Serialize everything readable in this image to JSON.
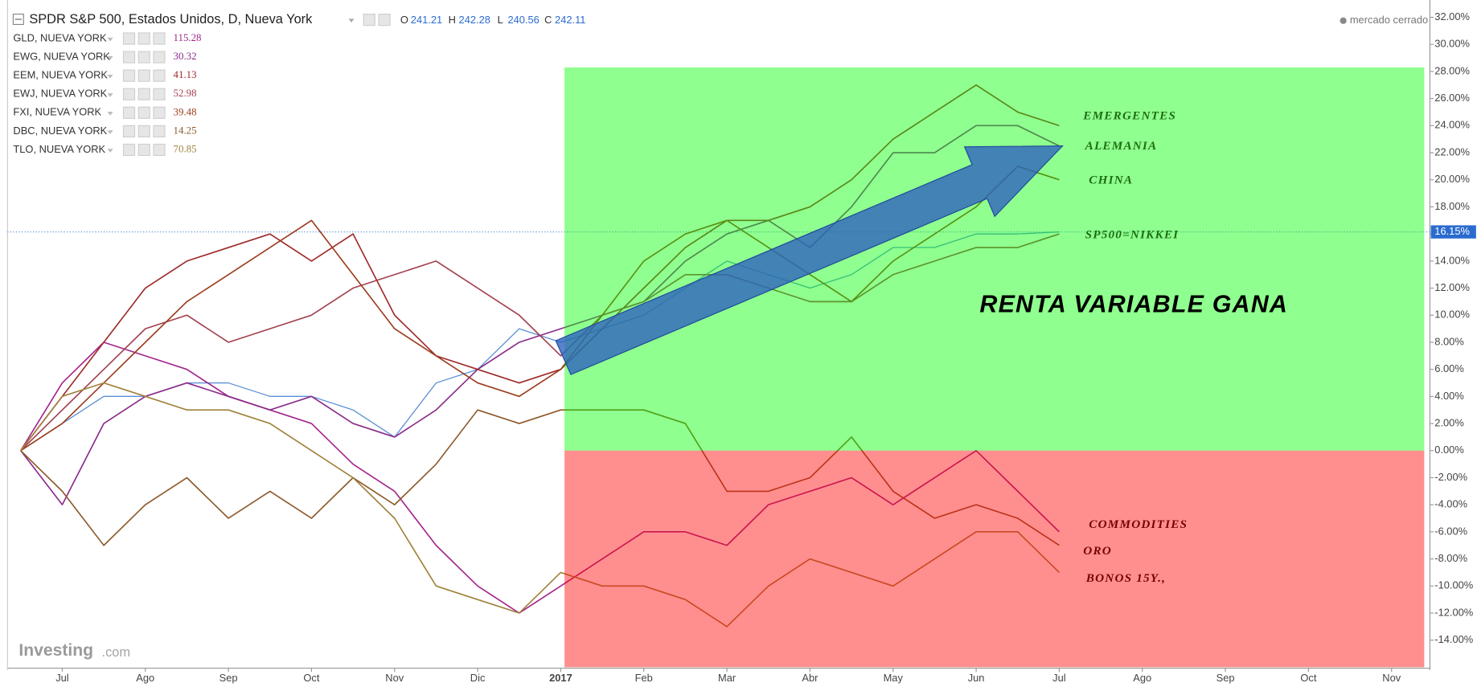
{
  "chart_data": {
    "type": "line",
    "categories": [
      null,
      "Jul",
      null,
      "Ago",
      null,
      "Sep",
      null,
      "Oct",
      null,
      "Nov",
      null,
      "Dic",
      null,
      "2017",
      null,
      "Feb",
      null,
      "Mar",
      null,
      "Abr",
      null,
      "May",
      null,
      "Jun",
      null,
      "Jul",
      null,
      "Ago",
      null,
      "Sep",
      null,
      "Oct",
      null,
      "Nov",
      null
    ],
    "ylim": [
      -16,
      33
    ],
    "yticks": [
      {
        "value": -14,
        "label": "-14.00%"
      },
      {
        "value": -12,
        "label": "-12.00%"
      },
      {
        "value": -10,
        "label": "-10.00%"
      },
      {
        "value": -8,
        "label": "-8.00%"
      },
      {
        "value": -6,
        "label": "-6.00%"
      },
      {
        "value": -4,
        "label": "-4.00%"
      },
      {
        "value": -2,
        "label": "-2.00%"
      },
      {
        "value": 0,
        "label": "0.00%"
      },
      {
        "value": 2,
        "label": "2.00%"
      },
      {
        "value": 4,
        "label": "4.00%"
      },
      {
        "value": 6,
        "label": "6.00%"
      },
      {
        "value": 8,
        "label": "8.00%"
      },
      {
        "value": 10,
        "label": "10.00%"
      },
      {
        "value": 12,
        "label": "12.00%"
      },
      {
        "value": 14,
        "label": "14.00%"
      },
      {
        "value": 16,
        "label": "16.00%"
      },
      {
        "value": 18,
        "label": "18.00%"
      },
      {
        "value": 20,
        "label": "20.00%"
      },
      {
        "value": 22,
        "label": "22.00%"
      },
      {
        "value": 24,
        "label": "24.00%"
      },
      {
        "value": 26,
        "label": "26.00%"
      },
      {
        "value": 28,
        "label": "28.00%"
      },
      {
        "value": 30,
        "label": "30.00%"
      },
      {
        "value": 32,
        "label": "32.00%"
      }
    ],
    "grid": false,
    "ohlc": [
      {
        "label": "O",
        "value": 241.21
      },
      {
        "label": "H",
        "value": 242.28
      },
      {
        "label": "L",
        "value": 240.56
      },
      {
        "label": "C",
        "value": 242.11
      }
    ],
    "status": "mercado cerrado",
    "brand": [
      "Investing",
      ".com"
    ],
    "series": [
      {
        "name": "SPDR S&P 500, Estados Unidos, D, Nueva York",
        "color": "#5b8fd6",
        "values": [
          0,
          2,
          4,
          4,
          5,
          5,
          4,
          4,
          3,
          1,
          5,
          6,
          9,
          8,
          9,
          10,
          12,
          14,
          13,
          12,
          13,
          15,
          15,
          16,
          16,
          16.15,
          null,
          null,
          null,
          null,
          null,
          null,
          null,
          null,
          null
        ],
        "value_labels": [
          null,
          null,
          null,
          null,
          null,
          null,
          null,
          null,
          null,
          null,
          null,
          null,
          null,
          null,
          null,
          null,
          null,
          null,
          null,
          null,
          null,
          null,
          null,
          null,
          null,
          "16.15%",
          null,
          null,
          null,
          null,
          null,
          null,
          null,
          null,
          null
        ]
      },
      {
        "name": "GLD, NUEVA YORK",
        "price": 115.28,
        "color": "#a3268c",
        "values": [
          0,
          5,
          8,
          7,
          6,
          4,
          3,
          2,
          -1,
          -3,
          -7,
          -10,
          -12,
          -10,
          -8,
          -6,
          -6,
          -7,
          -4,
          -3,
          -2,
          -4,
          -2,
          0,
          -3,
          -6,
          null,
          null,
          null,
          null,
          null,
          null,
          null,
          null,
          null
        ]
      },
      {
        "name": "EWG, NUEVA YORK",
        "price": 30.32,
        "color": "#8a2b8a",
        "values": [
          0,
          -4,
          2,
          4,
          5,
          4,
          3,
          4,
          2,
          1,
          3,
          6,
          8,
          9,
          10,
          11,
          14,
          16,
          17,
          15,
          18,
          22,
          22,
          24,
          24,
          22.5,
          null,
          null,
          null,
          null,
          null,
          null,
          null,
          null,
          null
        ]
      },
      {
        "name": "EEM, NUEVA YORK",
        "price": 41.13,
        "color": "#9e2a2a",
        "values": [
          0,
          4,
          8,
          12,
          14,
          15,
          16,
          14,
          16,
          10,
          7,
          6,
          5,
          6,
          9,
          12,
          15,
          17,
          17,
          18,
          20,
          23,
          25,
          27,
          25,
          24,
          null,
          null,
          null,
          null,
          null,
          null,
          null,
          null,
          null
        ]
      },
      {
        "name": "EWJ, NUEVA YORK",
        "price": 52.98,
        "color": "#a3404f",
        "values": [
          0,
          3,
          6,
          9,
          10,
          8,
          9,
          10,
          12,
          13,
          14,
          12,
          10,
          7,
          10,
          11,
          13,
          13,
          12,
          11,
          11,
          13,
          14,
          15,
          15,
          16,
          null,
          null,
          null,
          null,
          null,
          null,
          null,
          null,
          null
        ]
      },
      {
        "name": "FXI, NUEVA YORK",
        "price": 39.48,
        "color": "#9b3d1e",
        "values": [
          0,
          2,
          5,
          8,
          11,
          13,
          15,
          17,
          13,
          9,
          7,
          5,
          4,
          6,
          10,
          14,
          16,
          17,
          15,
          13,
          11,
          14,
          16,
          18,
          21,
          20,
          null,
          null,
          null,
          null,
          null,
          null,
          null,
          null,
          null
        ]
      },
      {
        "name": "DBC, NUEVA YORK",
        "price": 14.25,
        "color": "#8c5a2b",
        "values": [
          0,
          -3,
          -7,
          -4,
          -2,
          -5,
          -3,
          -5,
          -2,
          -4,
          -1,
          3,
          2,
          3,
          3,
          3,
          2,
          -3,
          -3,
          -2,
          1,
          -3,
          -5,
          -4,
          -5,
          -7,
          null,
          null,
          null,
          null,
          null,
          null,
          null,
          null,
          null
        ]
      },
      {
        "name": "TLO, NUEVA YORK",
        "price": 70.85,
        "color": "#a0823c",
        "values": [
          0,
          4,
          5,
          4,
          3,
          3,
          2,
          0,
          -2,
          -5,
          -10,
          -11,
          -12,
          -9,
          -10,
          -10,
          -11,
          -13,
          -10,
          -8,
          -9,
          -10,
          -8,
          -6,
          -6,
          -9,
          null,
          null,
          null,
          null,
          null,
          null,
          null,
          null,
          null
        ]
      }
    ],
    "shaded_regions": [
      {
        "from": "2017",
        "y": [
          0,
          28.3
        ],
        "color": "#00ff00"
      },
      {
        "from": "2017",
        "y": [
          -16,
          0
        ],
        "color": "#ff0000"
      }
    ],
    "annotations": [
      "EMERGENTES",
      "ALEMANIA",
      "CHINA",
      "SP500=NIKKEI",
      "RENTA VARIABLE GANA",
      "COMMODITIES",
      "ORO",
      "BONOS 15Y.,"
    ]
  }
}
